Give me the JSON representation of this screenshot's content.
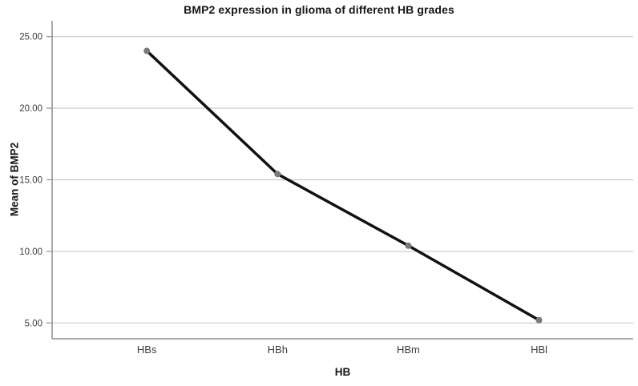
{
  "chart_data": {
    "type": "line",
    "title": "BMP2 expression in glioma of different HB grades",
    "xlabel": "HB",
    "ylabel": "Mean of BMP2",
    "categories": [
      "HBs",
      "HBh",
      "HBm",
      "HBl"
    ],
    "values": [
      24.0,
      15.4,
      10.4,
      5.2
    ],
    "yticks": [
      25,
      20,
      15,
      10,
      5
    ],
    "ytick_labels": [
      "25.00",
      "20.00",
      "15.00",
      "10.00",
      "5.00"
    ],
    "ylim": [
      3.9,
      26.1
    ],
    "grid": true,
    "legend_position": "none",
    "colors": {
      "background": "#ffffff",
      "line": "#111111",
      "marker": "#7a7a7a",
      "axis": "#919191",
      "gridline": "#c9c9c9",
      "tick_label": "#3d3d3d",
      "title": "#161616"
    }
  }
}
